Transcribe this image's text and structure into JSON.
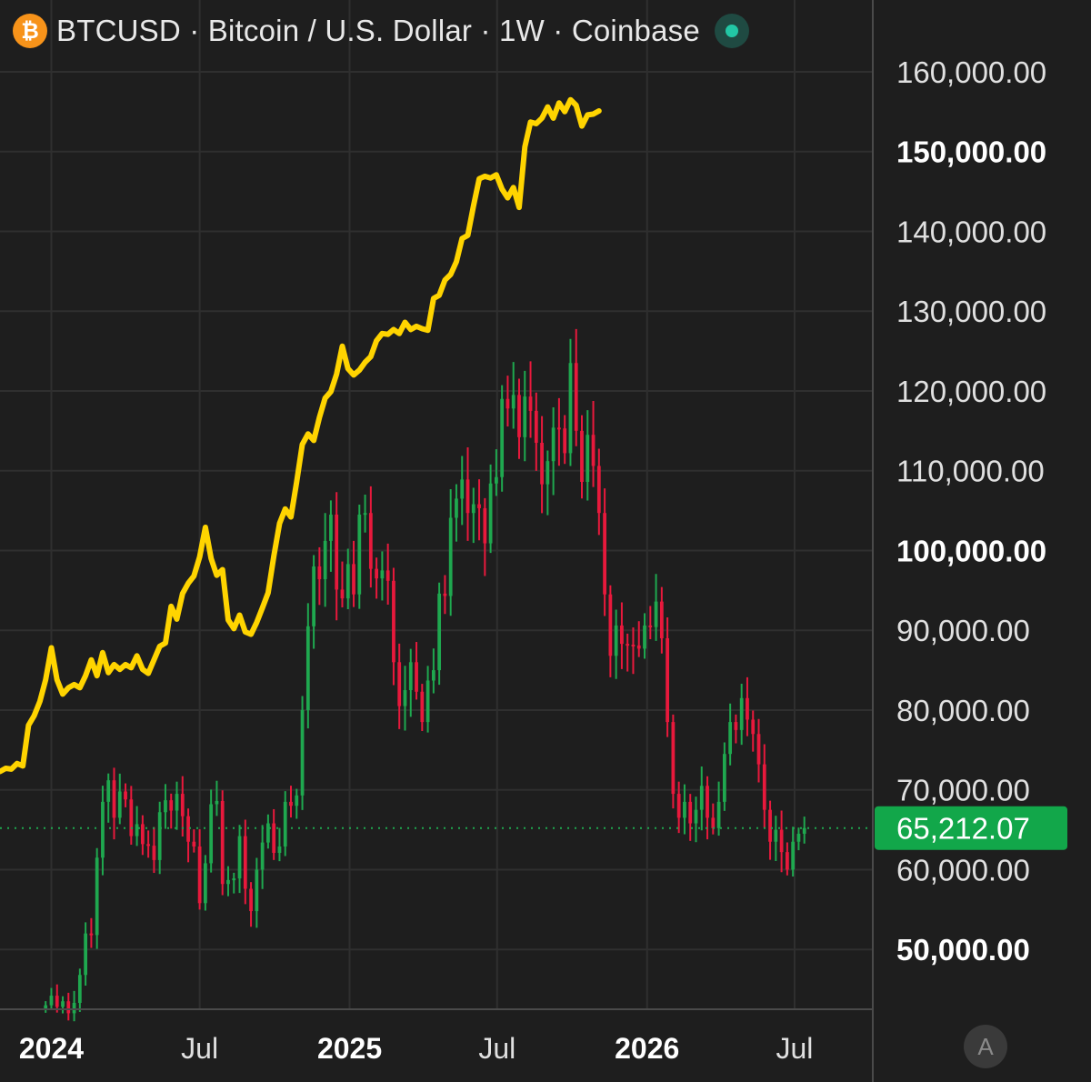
{
  "header": {
    "symbol_line": "BTCUSD · Bitcoin / U.S. Dollar · 1W · Coinbase",
    "coin_glyph": "₿",
    "coin_icon": "bitcoin-icon",
    "status_icon": "market-open-dot"
  },
  "autoscale_label": "A",
  "colors": {
    "background": "#1e1e1e",
    "grid": "#2f2f2f",
    "up": "#1fa84f",
    "down": "#e8193c",
    "overlay": "#ffd400",
    "price_label_bg": "#12a74a"
  },
  "chart_data": {
    "type": "candlestick",
    "symbol": "BTCUSD",
    "timeframe": "1W",
    "exchange": "Coinbase",
    "x_axis_labels": [
      {
        "label": "2024",
        "date": "2024-01-01",
        "bold": true
      },
      {
        "label": "Jul",
        "date": "2024-07-01",
        "bold": false
      },
      {
        "label": "2025",
        "date": "2025-01-01",
        "bold": true
      },
      {
        "label": "Jul",
        "date": "2025-07-01",
        "bold": false
      },
      {
        "label": "2026",
        "date": "2026-01-01",
        "bold": true
      },
      {
        "label": "Jul",
        "date": "2026-07-01",
        "bold": false
      }
    ],
    "y_axis_labels": [
      {
        "label": "160,000.00",
        "value": 160000,
        "bold": false
      },
      {
        "label": "150,000.00",
        "value": 150000,
        "bold": true
      },
      {
        "label": "140,000.00",
        "value": 140000,
        "bold": false
      },
      {
        "label": "130,000.00",
        "value": 130000,
        "bold": false
      },
      {
        "label": "120,000.00",
        "value": 120000,
        "bold": false
      },
      {
        "label": "110,000.00",
        "value": 110000,
        "bold": false
      },
      {
        "label": "100,000.00",
        "value": 100000,
        "bold": true
      },
      {
        "label": "90,000.00",
        "value": 90000,
        "bold": false
      },
      {
        "label": "80,000.00",
        "value": 80000,
        "bold": false
      },
      {
        "label": "70,000.00",
        "value": 70000,
        "bold": false
      },
      {
        "label": "60,000.00",
        "value": 60000,
        "bold": false
      },
      {
        "label": "50,000.00",
        "value": 50000,
        "bold": true
      }
    ],
    "ylim": [
      42500,
      169000
    ],
    "xlim": [
      "2023-10-30",
      "2026-10-05"
    ],
    "last_price": 65212.07,
    "last_price_label": "65,212.07",
    "candle_closes": [
      [
        "2023-12-25",
        43000
      ],
      [
        "2024-01-01",
        44200
      ],
      [
        "2024-01-08",
        42800
      ],
      [
        "2024-01-15",
        43500
      ],
      [
        "2024-01-22",
        42000
      ],
      [
        "2024-01-29",
        43300
      ],
      [
        "2024-02-05",
        46800
      ],
      [
        "2024-02-12",
        52000
      ],
      [
        "2024-02-19",
        51800
      ],
      [
        "2024-02-26",
        61500
      ],
      [
        "2024-03-04",
        68500
      ],
      [
        "2024-03-11",
        71200
      ],
      [
        "2024-03-18",
        66500
      ],
      [
        "2024-03-25",
        69800
      ],
      [
        "2024-04-01",
        68800
      ],
      [
        "2024-04-08",
        64200
      ],
      [
        "2024-04-15",
        65700
      ],
      [
        "2024-04-22",
        63200
      ],
      [
        "2024-04-29",
        63000
      ],
      [
        "2024-05-06",
        61200
      ],
      [
        "2024-05-13",
        67200
      ],
      [
        "2024-05-20",
        68700
      ],
      [
        "2024-05-27",
        67400
      ],
      [
        "2024-06-03",
        69500
      ],
      [
        "2024-06-10",
        66700
      ],
      [
        "2024-06-17",
        63500
      ],
      [
        "2024-06-24",
        62900
      ],
      [
        "2024-07-01",
        55800
      ],
      [
        "2024-07-08",
        60800
      ],
      [
        "2024-07-15",
        68200
      ],
      [
        "2024-07-22",
        68600
      ],
      [
        "2024-07-29",
        58200
      ],
      [
        "2024-08-05",
        58700
      ],
      [
        "2024-08-12",
        58900
      ],
      [
        "2024-08-19",
        64200
      ],
      [
        "2024-08-26",
        57600
      ],
      [
        "2024-09-02",
        54800
      ],
      [
        "2024-09-09",
        60000
      ],
      [
        "2024-09-16",
        63400
      ],
      [
        "2024-09-23",
        65800
      ],
      [
        "2024-09-30",
        62100
      ],
      [
        "2024-10-07",
        62900
      ],
      [
        "2024-10-14",
        68500
      ],
      [
        "2024-10-21",
        68000
      ],
      [
        "2024-10-28",
        69300
      ],
      [
        "2024-11-04",
        80000
      ],
      [
        "2024-11-11",
        90500
      ],
      [
        "2024-11-18",
        98000
      ],
      [
        "2024-11-25",
        96400
      ],
      [
        "2024-12-02",
        101200
      ],
      [
        "2024-12-09",
        104500
      ],
      [
        "2024-12-16",
        95100
      ],
      [
        "2024-12-23",
        94000
      ],
      [
        "2024-12-30",
        98300
      ],
      [
        "2025-01-06",
        94500
      ],
      [
        "2025-01-13",
        104500
      ],
      [
        "2025-01-20",
        104700
      ],
      [
        "2025-01-27",
        97700
      ],
      [
        "2025-02-03",
        96500
      ],
      [
        "2025-02-10",
        97500
      ],
      [
        "2025-02-17",
        96200
      ],
      [
        "2025-02-24",
        86000
      ],
      [
        "2025-03-03",
        80500
      ],
      [
        "2025-03-10",
        82500
      ],
      [
        "2025-03-17",
        86000
      ],
      [
        "2025-03-24",
        82300
      ],
      [
        "2025-03-31",
        78500
      ],
      [
        "2025-04-07",
        83700
      ],
      [
        "2025-04-14",
        85000
      ],
      [
        "2025-04-21",
        94600
      ],
      [
        "2025-04-28",
        94300
      ],
      [
        "2025-05-05",
        104100
      ],
      [
        "2025-05-12",
        106500
      ],
      [
        "2025-05-19",
        108900
      ],
      [
        "2025-05-26",
        104700
      ],
      [
        "2025-06-02",
        105800
      ],
      [
        "2025-06-09",
        105300
      ],
      [
        "2025-06-16",
        100900
      ],
      [
        "2025-06-23",
        108400
      ],
      [
        "2025-06-30",
        109200
      ],
      [
        "2025-07-07",
        119000
      ],
      [
        "2025-07-14",
        117800
      ],
      [
        "2025-07-21",
        119500
      ],
      [
        "2025-07-28",
        114200
      ],
      [
        "2025-08-04",
        119300
      ],
      [
        "2025-08-11",
        117500
      ],
      [
        "2025-08-18",
        113500
      ],
      [
        "2025-08-25",
        108300
      ],
      [
        "2025-09-01",
        111200
      ],
      [
        "2025-09-08",
        115400
      ],
      [
        "2025-09-15",
        115300
      ],
      [
        "2025-09-22",
        112200
      ],
      [
        "2025-09-29",
        123500
      ],
      [
        "2025-10-06",
        115000
      ],
      [
        "2025-10-13",
        108600
      ],
      [
        "2025-10-20",
        114500
      ],
      [
        "2025-10-27",
        110600
      ],
      [
        "2025-11-03",
        104700
      ],
      [
        "2025-11-10",
        94500
      ],
      [
        "2025-11-17",
        86800
      ],
      [
        "2025-11-24",
        90600
      ],
      [
        "2025-12-01",
        88300
      ],
      [
        "2025-12-08",
        88200
      ],
      [
        "2025-12-15",
        88100
      ],
      [
        "2025-12-22",
        87700
      ],
      [
        "2025-12-29",
        90600
      ],
      [
        "2026-01-05",
        90400
      ],
      [
        "2026-01-12",
        93600
      ],
      [
        "2026-01-19",
        89000
      ],
      [
        "2026-01-26",
        78500
      ],
      [
        "2026-02-02",
        69500
      ],
      [
        "2026-02-09",
        66500
      ],
      [
        "2026-02-16",
        68500
      ],
      [
        "2026-02-23",
        65800
      ],
      [
        "2026-03-02",
        67500
      ],
      [
        "2026-03-09",
        70500
      ],
      [
        "2026-03-16",
        66500
      ],
      [
        "2026-03-23",
        65200
      ],
      [
        "2026-03-30",
        68500
      ],
      [
        "2026-04-06",
        74500
      ],
      [
        "2026-04-13",
        78500
      ],
      [
        "2026-04-20",
        77500
      ],
      [
        "2026-04-27",
        81500
      ],
      [
        "2026-05-04",
        78800
      ],
      [
        "2026-05-11",
        77000
      ],
      [
        "2026-05-18",
        73200
      ],
      [
        "2026-05-25",
        67500
      ],
      [
        "2026-06-01",
        63500
      ],
      [
        "2026-06-08",
        65000
      ],
      [
        "2026-06-15",
        62200
      ],
      [
        "2026-06-22",
        60000
      ],
      [
        "2026-06-29",
        63500
      ],
      [
        "2026-07-06",
        64500
      ],
      [
        "2026-07-13",
        65212.07
      ]
    ],
    "overlay_series": {
      "color": "#ffd400",
      "points": [
        [
          "2023-10-30",
          72300
        ],
        [
          "2023-11-06",
          72700
        ],
        [
          "2023-11-13",
          72600
        ],
        [
          "2023-11-20",
          73300
        ],
        [
          "2023-11-27",
          73000
        ],
        [
          "2023-12-04",
          78100
        ],
        [
          "2023-12-11",
          79300
        ],
        [
          "2023-12-18",
          81100
        ],
        [
          "2023-12-25",
          83800
        ],
        [
          "2024-01-01",
          87800
        ],
        [
          "2024-01-08",
          83800
        ],
        [
          "2024-01-15",
          82000
        ],
        [
          "2024-01-22",
          82800
        ],
        [
          "2024-01-29",
          83200
        ],
        [
          "2024-02-05",
          82800
        ],
        [
          "2024-02-12",
          84300
        ],
        [
          "2024-02-19",
          86300
        ],
        [
          "2024-02-26",
          84300
        ],
        [
          "2024-03-04",
          87200
        ],
        [
          "2024-03-11",
          84700
        ],
        [
          "2024-03-18",
          85700
        ],
        [
          "2024-03-25",
          85100
        ],
        [
          "2024-04-01",
          85700
        ],
        [
          "2024-04-08",
          85300
        ],
        [
          "2024-04-15",
          86800
        ],
        [
          "2024-04-22",
          85100
        ],
        [
          "2024-04-29",
          84600
        ],
        [
          "2024-05-06",
          86300
        ],
        [
          "2024-05-13",
          88000
        ],
        [
          "2024-05-20",
          88400
        ],
        [
          "2024-05-27",
          93000
        ],
        [
          "2024-06-03",
          91400
        ],
        [
          "2024-06-10",
          94600
        ],
        [
          "2024-06-17",
          95900
        ],
        [
          "2024-06-24",
          96800
        ],
        [
          "2024-07-01",
          99200
        ],
        [
          "2024-07-08",
          102900
        ],
        [
          "2024-07-15",
          99000
        ],
        [
          "2024-07-22",
          96900
        ],
        [
          "2024-07-29",
          97600
        ],
        [
          "2024-08-05",
          91300
        ],
        [
          "2024-08-12",
          90200
        ],
        [
          "2024-08-19",
          91900
        ],
        [
          "2024-08-26",
          89800
        ],
        [
          "2024-09-02",
          89500
        ],
        [
          "2024-09-09",
          91000
        ],
        [
          "2024-09-16",
          92800
        ],
        [
          "2024-09-23",
          94700
        ],
        [
          "2024-09-30",
          99300
        ],
        [
          "2024-10-07",
          103400
        ],
        [
          "2024-10-14",
          105200
        ],
        [
          "2024-10-21",
          104200
        ],
        [
          "2024-10-28",
          108600
        ],
        [
          "2024-11-04",
          113300
        ],
        [
          "2024-11-11",
          114600
        ],
        [
          "2024-11-18",
          113800
        ],
        [
          "2024-11-25",
          116700
        ],
        [
          "2024-12-02",
          119100
        ],
        [
          "2024-12-09",
          119900
        ],
        [
          "2024-12-16",
          122100
        ],
        [
          "2024-12-23",
          125600
        ],
        [
          "2024-12-30",
          122800
        ],
        [
          "2025-01-06",
          122000
        ],
        [
          "2025-01-13",
          122600
        ],
        [
          "2025-01-20",
          123600
        ],
        [
          "2025-01-27",
          124300
        ],
        [
          "2025-02-03",
          126300
        ],
        [
          "2025-02-10",
          127200
        ],
        [
          "2025-02-17",
          127100
        ],
        [
          "2025-02-24",
          127700
        ],
        [
          "2025-03-03",
          127200
        ],
        [
          "2025-03-10",
          128600
        ],
        [
          "2025-03-17",
          127700
        ],
        [
          "2025-03-24",
          128100
        ],
        [
          "2025-03-31",
          127800
        ],
        [
          "2025-04-07",
          127600
        ],
        [
          "2025-04-14",
          131600
        ],
        [
          "2025-04-21",
          132000
        ],
        [
          "2025-04-28",
          133900
        ],
        [
          "2025-05-05",
          134600
        ],
        [
          "2025-05-12",
          136200
        ],
        [
          "2025-05-19",
          139100
        ],
        [
          "2025-05-26",
          139500
        ],
        [
          "2025-06-02",
          143200
        ],
        [
          "2025-06-09",
          146600
        ],
        [
          "2025-06-16",
          146900
        ],
        [
          "2025-06-23",
          146700
        ],
        [
          "2025-06-30",
          147100
        ],
        [
          "2025-07-07",
          145300
        ],
        [
          "2025-07-14",
          144200
        ],
        [
          "2025-07-21",
          145500
        ],
        [
          "2025-07-28",
          143000
        ],
        [
          "2025-08-04",
          150600
        ],
        [
          "2025-08-11",
          153700
        ],
        [
          "2025-08-18",
          153500
        ],
        [
          "2025-08-25",
          154200
        ],
        [
          "2025-09-01",
          155600
        ],
        [
          "2025-09-08",
          154200
        ],
        [
          "2025-09-15",
          156100
        ],
        [
          "2025-09-22",
          155000
        ],
        [
          "2025-09-29",
          156500
        ],
        [
          "2025-10-06",
          155800
        ],
        [
          "2025-10-13",
          153200
        ],
        [
          "2025-10-20",
          154600
        ],
        [
          "2025-10-27",
          154700
        ],
        [
          "2025-11-03",
          155100
        ]
      ]
    }
  }
}
